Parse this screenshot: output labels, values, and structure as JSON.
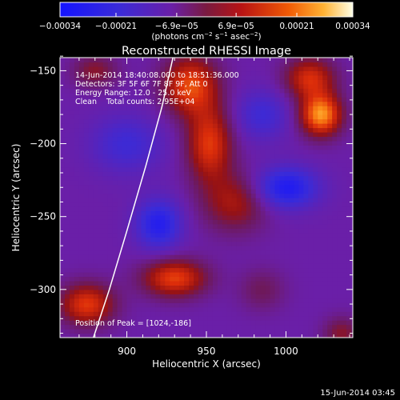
{
  "chart_data": {
    "type": "heatmap",
    "title": "Reconstructed RHESSI Image",
    "xlabel": "Heliocentric X (arcsec)",
    "ylabel": "Heliocentric Y (arcsec)",
    "xlim": [
      858,
      1042
    ],
    "ylim": [
      -333,
      -141
    ],
    "x_ticks": [
      900,
      950,
      1000
    ],
    "y_ticks": [
      -150,
      -200,
      -250,
      -300
    ],
    "colorbar": {
      "range": [
        -0.00034,
        0.00034
      ],
      "ticks": [
        {
          "value": -0.00034,
          "label": "−0.00034"
        },
        {
          "value": -0.00021,
          "label": "−0.00021"
        },
        {
          "value": -6.9e-05,
          "label": "−6.9e−05"
        },
        {
          "value": 6.9e-05,
          "label": "6.9e−05"
        },
        {
          "value": 0.00021,
          "label": "0.00021"
        },
        {
          "value": 0.00034,
          "label": "0.00034"
        }
      ],
      "unit_main": "(photons cm",
      "unit_sup1": "−2",
      "unit_s": " s",
      "unit_sup2": "−1",
      "unit_asec": " asec",
      "unit_sup3": "−2",
      "unit_close": ")"
    },
    "annotations": [
      "14-Jun-2014 18:40:08.000 to 18:51:36.000",
      "Detectors: 3F 5F 6F 7F 8F 9F, Att 0",
      "Energy Range: 12.0 - 25.0 keV",
      "Clean    Total counts: 2.95E+04",
      "Position of Peak = [1024,-186]"
    ],
    "peak": {
      "x": 1024,
      "y": -186
    },
    "limb_curve": [
      [
        929,
        -141
      ],
      [
        922,
        -175
      ],
      [
        912,
        -215
      ],
      [
        900,
        -260
      ],
      [
        889,
        -300
      ],
      [
        879,
        -333
      ]
    ],
    "sources": [
      {
        "x": 1022,
        "y": -180,
        "value": 0.00034,
        "sx": 9,
        "sy": 10
      },
      {
        "x": 1015,
        "y": -155,
        "value": 0.00022,
        "sx": 11,
        "sy": 10
      },
      {
        "x": 940,
        "y": -160,
        "value": 0.00026,
        "sx": 12,
        "sy": 14
      },
      {
        "x": 952,
        "y": -200,
        "value": 0.00024,
        "sx": 10,
        "sy": 18
      },
      {
        "x": 968,
        "y": -240,
        "value": 0.00016,
        "sx": 14,
        "sy": 14
      },
      {
        "x": 930,
        "y": -292,
        "value": 0.00025,
        "sx": 14,
        "sy": 9
      },
      {
        "x": 875,
        "y": -310,
        "value": 0.00024,
        "sx": 12,
        "sy": 10
      },
      {
        "x": 880,
        "y": -150,
        "value": 0.00012,
        "sx": 10,
        "sy": 8
      },
      {
        "x": 1035,
        "y": -330,
        "value": 0.00012,
        "sx": 8,
        "sy": 8
      },
      {
        "x": 985,
        "y": -300,
        "value": 8e-05,
        "sx": 10,
        "sy": 10
      },
      {
        "x": 1000,
        "y": -230,
        "value": -0.00022,
        "sx": 14,
        "sy": 10
      },
      {
        "x": 920,
        "y": -255,
        "value": -0.0002,
        "sx": 10,
        "sy": 12
      },
      {
        "x": 900,
        "y": -200,
        "value": -0.00012,
        "sx": 16,
        "sy": 14
      },
      {
        "x": 985,
        "y": -180,
        "value": -0.00012,
        "sx": 12,
        "sy": 12
      }
    ]
  },
  "footer": {
    "date": "15-Jun-2014 03:45"
  }
}
